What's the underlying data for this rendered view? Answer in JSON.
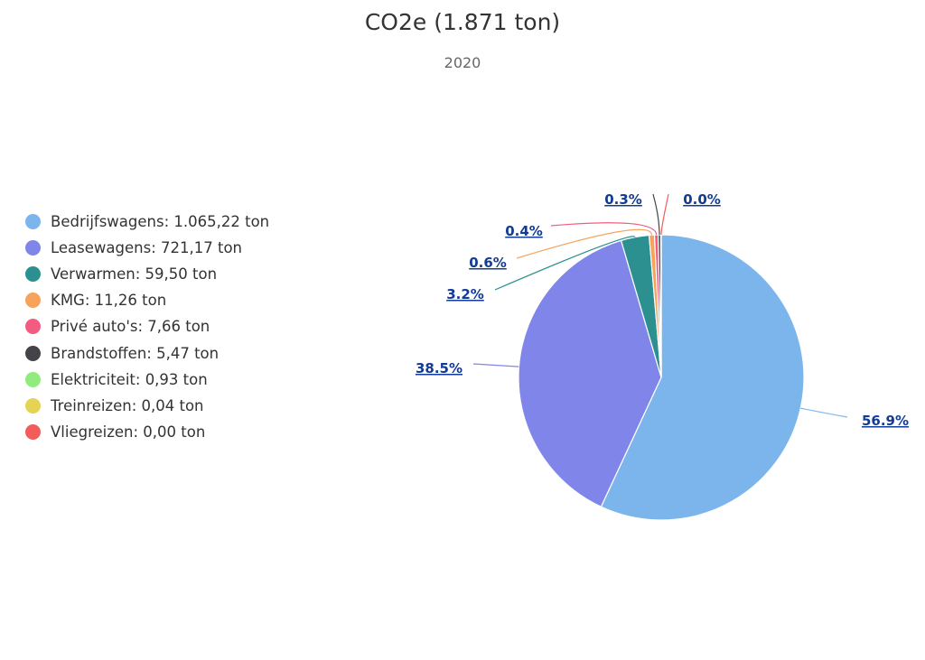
{
  "chart_data": {
    "type": "pie",
    "title": "CO2e (1.871 ton)",
    "subtitle": "2020",
    "legend_position": "left",
    "slices": [
      {
        "name": "Bedrijfswagens",
        "legend": "Bedrijfswagens: 1.065,22 ton",
        "value": 1065.22,
        "percent": 56.9,
        "label": "56.9%",
        "color": "#7cb5ec"
      },
      {
        "name": "Leasewagens",
        "legend": "Leasewagens: 721,17 ton",
        "value": 721.17,
        "percent": 38.5,
        "label": "38.5%",
        "color": "#8085e9"
      },
      {
        "name": "Verwarmen",
        "legend": "Verwarmen: 59,50 ton",
        "value": 59.5,
        "percent": 3.2,
        "label": "3.2%",
        "color": "#2b908f"
      },
      {
        "name": "KMG",
        "legend": "KMG: 11,26 ton",
        "value": 11.26,
        "percent": 0.6,
        "label": "0.6%",
        "color": "#f7a35c"
      },
      {
        "name": "Privé auto's",
        "legend": "Privé auto's: 7,66 ton",
        "value": 7.66,
        "percent": 0.4,
        "label": "0.4%",
        "color": "#f15c80"
      },
      {
        "name": "Brandstoffen",
        "legend": "Brandstoffen: 5,47 ton",
        "value": 5.47,
        "percent": 0.3,
        "label": "0.3%",
        "color": "#434348"
      },
      {
        "name": "Elektriciteit",
        "legend": "Elektriciteit: 0,93 ton",
        "value": 0.93,
        "percent": 0.05,
        "label": "",
        "color": "#90ed7d"
      },
      {
        "name": "Treinreizen",
        "legend": "Treinreizen: 0,04 ton",
        "value": 0.04,
        "percent": 0.002,
        "label": "",
        "color": "#e4d354"
      },
      {
        "name": "Vliegreizen",
        "legend": "Vliegreizen: 0,00 ton",
        "value": 0.0,
        "percent": 0.0,
        "label": "0.0%",
        "color": "#f45b5b"
      }
    ]
  }
}
